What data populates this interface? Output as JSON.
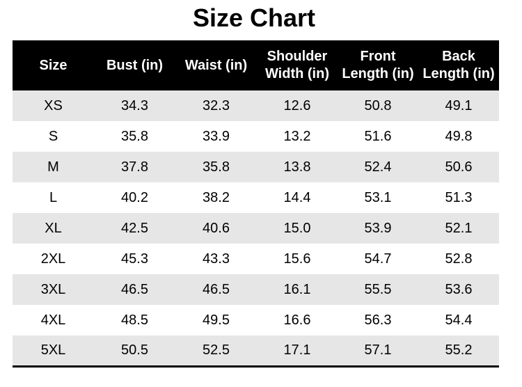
{
  "title": "Size Chart",
  "headers": [
    [
      "Size"
    ],
    [
      "Bust (in)"
    ],
    [
      "Waist (in)"
    ],
    [
      "Shoulder",
      "Width (in)"
    ],
    [
      "Front",
      "Length (in)"
    ],
    [
      "Back",
      "Length (in)"
    ]
  ],
  "rows": [
    [
      "XS",
      "34.3",
      "32.3",
      "12.6",
      "50.8",
      "49.1"
    ],
    [
      "S",
      "35.8",
      "33.9",
      "13.2",
      "51.6",
      "49.8"
    ],
    [
      "M",
      "37.8",
      "35.8",
      "13.8",
      "52.4",
      "50.6"
    ],
    [
      "L",
      "40.2",
      "38.2",
      "14.4",
      "53.1",
      "51.3"
    ],
    [
      "XL",
      "42.5",
      "40.6",
      "15.0",
      "53.9",
      "52.1"
    ],
    [
      "2XL",
      "45.3",
      "43.3",
      "15.6",
      "54.7",
      "52.8"
    ],
    [
      "3XL",
      "46.5",
      "46.5",
      "16.1",
      "55.5",
      "53.6"
    ],
    [
      "4XL",
      "48.5",
      "49.5",
      "16.6",
      "56.3",
      "54.4"
    ],
    [
      "5XL",
      "50.5",
      "52.5",
      "17.1",
      "57.1",
      "55.2"
    ]
  ],
  "colors": {
    "header_bg": "#000000",
    "header_text": "#ffffff",
    "row_shaded": "#e6e6e6",
    "row_plain": "#ffffff"
  }
}
